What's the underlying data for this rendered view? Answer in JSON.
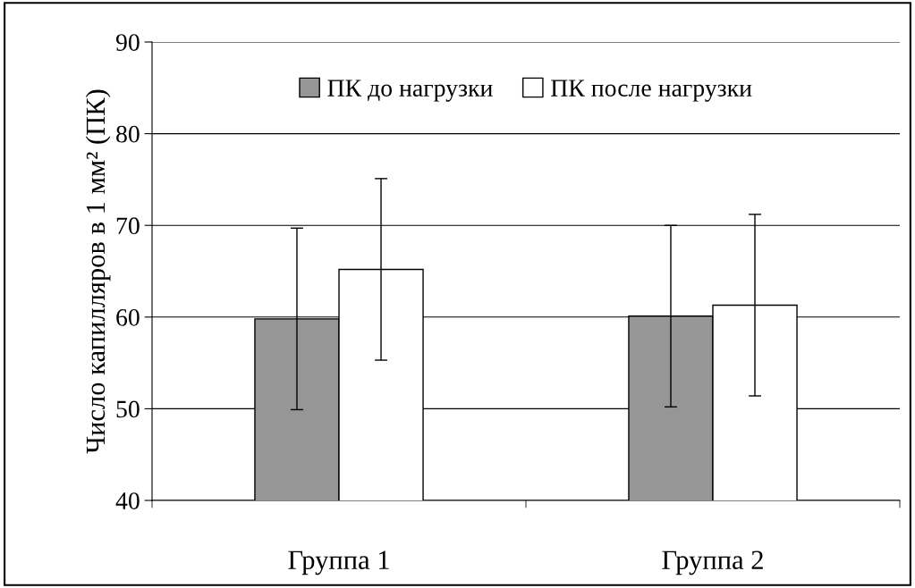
{
  "chart_data": {
    "type": "bar",
    "ylabel": "Число капилляров в 1 мм² (ПК)",
    "categories": [
      "Группа 1",
      "Группа 2"
    ],
    "series": [
      {
        "name": "ПК до нагрузки",
        "color": "#969696",
        "values": [
          59.8,
          60.1
        ],
        "errors": [
          9.9,
          9.9
        ]
      },
      {
        "name": "ПК после нагрузки",
        "color": "#ffffff",
        "values": [
          65.2,
          61.3
        ],
        "errors": [
          9.9,
          9.9
        ]
      }
    ],
    "ylim": [
      40,
      90
    ],
    "yticks": [
      40,
      50,
      60,
      70,
      80,
      90
    ],
    "grid": "y",
    "legend": "top"
  }
}
